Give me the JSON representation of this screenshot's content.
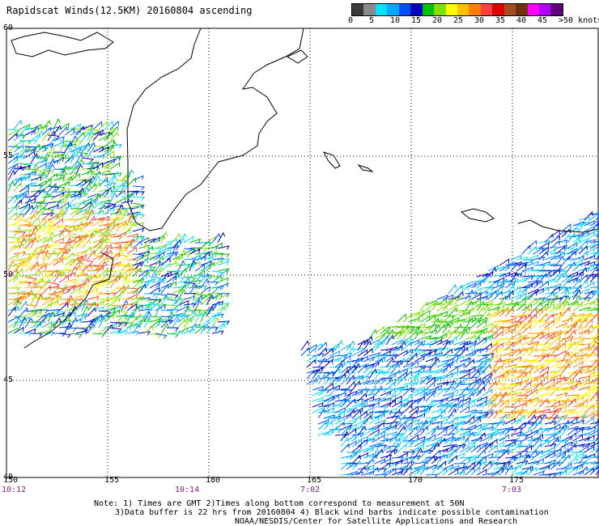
{
  "title": "Rapidscat Winds(12.5KM) 20160804 ascending",
  "colorbar": {
    "colors": [
      "#3a3a3a",
      "#8a8a8a",
      "#00e0ff",
      "#00a8ff",
      "#0050ff",
      "#0000c0",
      "#00c000",
      "#80e000",
      "#ffff00",
      "#ffc000",
      "#ff8000",
      "#ff4040",
      "#e00000",
      "#a05020",
      "#703010",
      "#ff00ff",
      "#b000ff",
      "#600080"
    ],
    "labels": [
      "0",
      "5",
      "10",
      "15",
      "20",
      "25",
      "30",
      "35",
      "40",
      "45"
    ],
    "units_label": ">50 knots"
  },
  "map": {
    "lat_labels": [
      "60",
      "55",
      "50",
      "45",
      "40"
    ],
    "lon_labels": [
      "150",
      "155",
      "180",
      "165",
      "170",
      "175"
    ],
    "time_labels": [
      "10:12",
      "10:14",
      "7:02",
      "7:03"
    ]
  },
  "notes": [
    "Note: 1) Times are GMT 2)Times along bottom correspond to measurement at 50N",
    "3)Data buffer is 22 hrs from 20160804 4) Black wind barbs indicate possible contamination",
    "NOAA/NESDIS/Center for Satellite Applications and Research"
  ],
  "chart_data": {
    "type": "wind-barb-map",
    "lat_range": [
      40,
      60
    ],
    "lon_range": [
      150,
      180
    ],
    "gridlines": true,
    "swaths": [
      {
        "time": "10:12",
        "lon_range": [
          150,
          159
        ],
        "lat_range": [
          46.5,
          56
        ],
        "speed_knots_range": [
          5,
          30
        ]
      },
      {
        "time": "10:14",
        "lon_range": [
          154,
          159
        ],
        "lat_range": [
          47,
          51
        ],
        "speed_knots_range": [
          10,
          20
        ]
      },
      {
        "time": "7:03",
        "lon_range": [
          163,
          180
        ],
        "lat_range": [
          40,
          53
        ],
        "speed_knots_range": [
          5,
          30
        ]
      }
    ]
  }
}
